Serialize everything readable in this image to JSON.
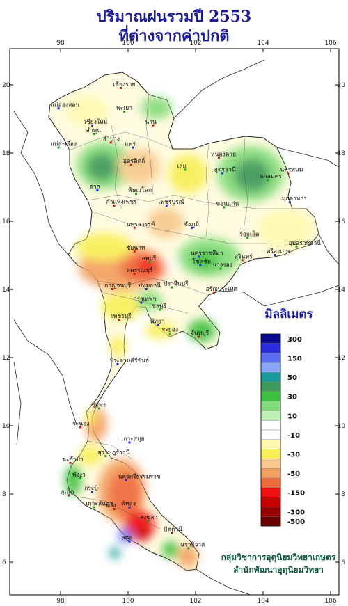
{
  "title_line1": "ปริมาณฝนรวมปี 2553",
  "title_line2": "ที่ต่างจากค่าปกติ",
  "legend_unit": "มิลลิเมตร",
  "axis": {
    "lon_ticks": [
      "98",
      "100",
      "102",
      "104",
      "106"
    ],
    "lat_ticks": [
      "20",
      "18",
      "16",
      "14",
      "12",
      "10",
      "8",
      "6"
    ]
  },
  "legend": [
    {
      "color": "#0a0a8c",
      "label": "300"
    },
    {
      "color": "#2d2de0",
      "label": ""
    },
    {
      "color": "#5c6cf0",
      "label": "150"
    },
    {
      "color": "#8aa6f7",
      "label": ""
    },
    {
      "color": "#1b9c9c",
      "label": "50"
    },
    {
      "color": "#3c9a5a",
      "label": ""
    },
    {
      "color": "#3fbf3f",
      "label": "30"
    },
    {
      "color": "#84dd7c",
      "label": ""
    },
    {
      "color": "#bff0b5",
      "label": "10"
    },
    {
      "color": "#ffffff",
      "label": ""
    },
    {
      "color": "#ffffff",
      "label": "-10"
    },
    {
      "color": "#fff9b0",
      "label": ""
    },
    {
      "color": "#f8ef58",
      "label": "-30"
    },
    {
      "color": "#f7c98e",
      "label": ""
    },
    {
      "color": "#f2a060",
      "label": "-50"
    },
    {
      "color": "#ef6b3c",
      "label": ""
    },
    {
      "color": "#f01010",
      "label": "-150"
    },
    {
      "color": "#c80000",
      "label": ""
    },
    {
      "color": "#9a0000",
      "label": "-300"
    },
    {
      "color": "#6a0000",
      "label": "-500"
    }
  ],
  "provinces": [
    {
      "name": "เชียงราย",
      "lon": 99.8,
      "lat": 19.9
    },
    {
      "name": "แม่ฮ่องสอน",
      "lon": 97.95,
      "lat": 19.3
    },
    {
      "name": "พะเยา",
      "lon": 99.9,
      "lat": 19.2
    },
    {
      "name": "น่าน",
      "lon": 100.75,
      "lat": 18.8
    },
    {
      "name": "เชียงใหม่",
      "lon": 98.95,
      "lat": 18.8
    },
    {
      "name": "ลำพูน",
      "lon": 99.0,
      "lat": 18.55
    },
    {
      "name": "ลำปาง",
      "lon": 99.5,
      "lat": 18.3
    },
    {
      "name": "แพร่",
      "lon": 100.15,
      "lat": 18.15
    },
    {
      "name": "แม่สะเรียง",
      "lon": 97.95,
      "lat": 18.15
    },
    {
      "name": "อุตรดิตถ์",
      "lon": 100.1,
      "lat": 17.65
    },
    {
      "name": "ตาก",
      "lon": 99.1,
      "lat": 16.9
    },
    {
      "name": "พิษณุโลก",
      "lon": 100.25,
      "lat": 16.8
    },
    {
      "name": "กำแพงเพชร",
      "lon": 99.6,
      "lat": 16.45
    },
    {
      "name": "เพชรบูรณ์",
      "lon": 101.15,
      "lat": 16.45
    },
    {
      "name": "เลย",
      "lon": 101.7,
      "lat": 17.5
    },
    {
      "name": "หนองคาย",
      "lon": 102.7,
      "lat": 17.85
    },
    {
      "name": "อุดรธานี",
      "lon": 102.8,
      "lat": 17.4
    },
    {
      "name": "สกลนคร",
      "lon": 104.15,
      "lat": 17.2
    },
    {
      "name": "นครพนม",
      "lon": 104.75,
      "lat": 17.4
    },
    {
      "name": "มุกดาหาร",
      "lon": 104.8,
      "lat": 16.55
    },
    {
      "name": "ขอนแก่น",
      "lon": 102.85,
      "lat": 16.4
    },
    {
      "name": "นครสวรรค์",
      "lon": 100.2,
      "lat": 15.8
    },
    {
      "name": "ชัยภูมิ",
      "lon": 101.9,
      "lat": 15.8
    },
    {
      "name": "อุบลราชธานี",
      "lon": 105.0,
      "lat": 15.25
    },
    {
      "name": "ชัยนาท",
      "lon": 100.2,
      "lat": 15.1
    },
    {
      "name": "นครราชสีมา",
      "lon": 102.1,
      "lat": 14.95
    },
    {
      "name": "ร้อยเอ็ด",
      "lon": 103.55,
      "lat": 15.5
    },
    {
      "name": "สุรินทร์",
      "lon": 103.4,
      "lat": 14.85
    },
    {
      "name": "ศรีสะเกษ",
      "lon": 104.35,
      "lat": 15.0
    },
    {
      "name": "ลพบุรี",
      "lon": 100.65,
      "lat": 14.8
    },
    {
      "name": "สุพรรณบุรี",
      "lon": 100.2,
      "lat": 14.45
    },
    {
      "name": "โชคชัย",
      "lon": 102.15,
      "lat": 14.7
    },
    {
      "name": "นางรอง",
      "lon": 102.75,
      "lat": 14.6
    },
    {
      "name": "กาญจนบุรี",
      "lon": 99.55,
      "lat": 14.0
    },
    {
      "name": "ปทุมธานี",
      "lon": 100.55,
      "lat": 14.0
    },
    {
      "name": "ปราจีนบุรี",
      "lon": 101.3,
      "lat": 14.05
    },
    {
      "name": "อรัญประเทศ",
      "lon": 102.55,
      "lat": 13.9
    },
    {
      "name": "กรุงเทพฯ",
      "lon": 100.4,
      "lat": 13.6
    },
    {
      "name": "ชลบุรี",
      "lon": 100.95,
      "lat": 13.4
    },
    {
      "name": "เพชรบุรี",
      "lon": 99.75,
      "lat": 13.1
    },
    {
      "name": "พัทยา",
      "lon": 100.9,
      "lat": 12.95
    },
    {
      "name": "ระยอง",
      "lon": 101.25,
      "lat": 12.7
    },
    {
      "name": "จันทบุรี",
      "lon": 102.1,
      "lat": 12.6
    },
    {
      "name": "ประจวบคีรีขันธ์",
      "lon": 99.7,
      "lat": 11.8
    },
    {
      "name": "ชุมพร",
      "lon": 99.15,
      "lat": 10.5
    },
    {
      "name": "ระนอง",
      "lon": 98.6,
      "lat": 9.95
    },
    {
      "name": "เกาะสมุย",
      "lon": 100.05,
      "lat": 9.5
    },
    {
      "name": "สุราษฎร์ธานี",
      "lon": 99.35,
      "lat": 9.1
    },
    {
      "name": "ตะกั่วป่า",
      "lon": 98.3,
      "lat": 8.9
    },
    {
      "name": "นครศรีธรรมราช",
      "lon": 99.95,
      "lat": 8.4
    },
    {
      "name": "พังงา",
      "lon": 98.6,
      "lat": 8.45
    },
    {
      "name": "ภูเก็ต",
      "lon": 98.25,
      "lat": 7.95
    },
    {
      "name": "กระบี่",
      "lon": 98.95,
      "lat": 8.05
    },
    {
      "name": "เกาะลันตา",
      "lon": 99.0,
      "lat": 7.6
    },
    {
      "name": "ตรัง",
      "lon": 99.6,
      "lat": 7.55
    },
    {
      "name": "พัทลุง",
      "lon": 100.05,
      "lat": 7.6
    },
    {
      "name": "สงขลา",
      "lon": 100.6,
      "lat": 7.2
    },
    {
      "name": "ปัตตานี",
      "lon": 101.3,
      "lat": 6.85
    },
    {
      "name": "สตูล",
      "lon": 100.05,
      "lat": 6.6
    },
    {
      "name": "นราธิวาส",
      "lon": 101.8,
      "lat": 6.4
    }
  ],
  "credit_line1": "กลุ่มวิชาการอุตุนิยมวิทยาเกษตร",
  "credit_line2": "สำนักพัฒนาอุตุนิยมวิทยา"
}
